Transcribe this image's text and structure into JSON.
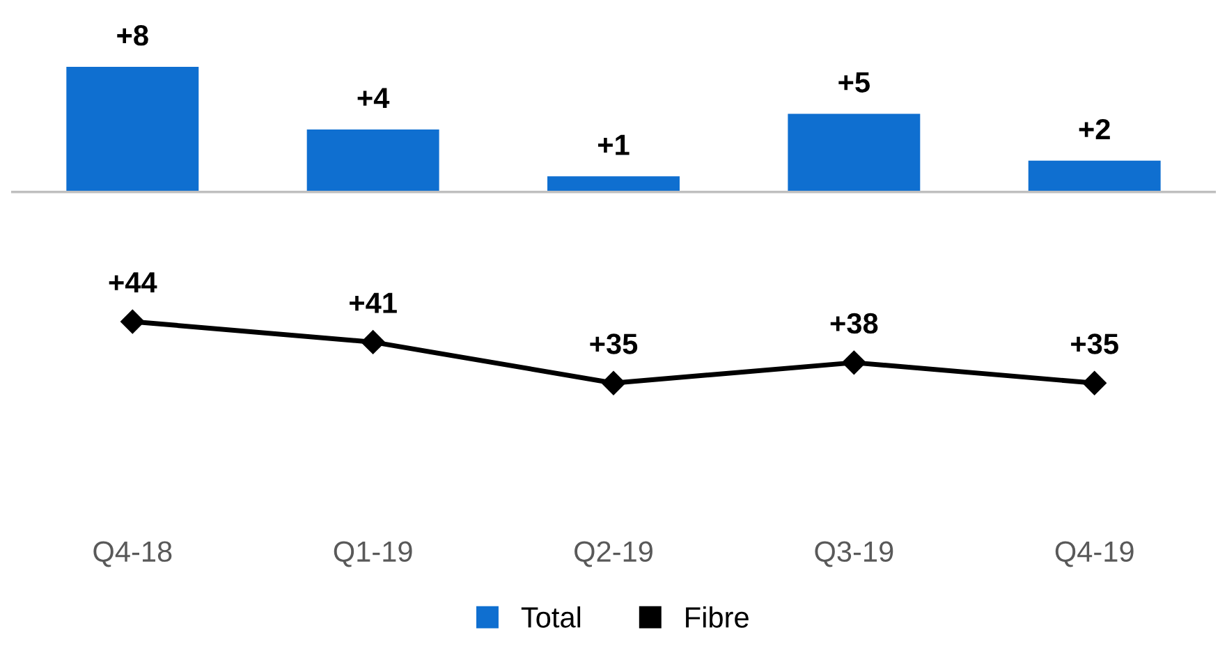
{
  "chart_data": [
    {
      "type": "bar",
      "categories": [
        null,
        null,
        null,
        null,
        null
      ],
      "tick_labels": false,
      "series": [
        {
          "name": "Total",
          "color": "#0f6fd0",
          "values": [
            8,
            4,
            1,
            5,
            2
          ],
          "value_labels": [
            "+8",
            "+4",
            "+1",
            "+5",
            "+2"
          ]
        }
      ],
      "legend": "bottom"
    },
    {
      "type": "line",
      "categories": [
        "Q4-18",
        "Q1-19",
        "Q2-19",
        "Q3-19",
        "Q4-19"
      ],
      "tick_labels": "x",
      "marker": "diamond",
      "line_style": "solid",
      "series": [
        {
          "name": "Fibre",
          "color": "#000000",
          "values": [
            44,
            41,
            35,
            38,
            35
          ],
          "value_labels": [
            "+44",
            "+41",
            "+35",
            "+38",
            "+35"
          ]
        }
      ],
      "legend": "bottom"
    }
  ]
}
